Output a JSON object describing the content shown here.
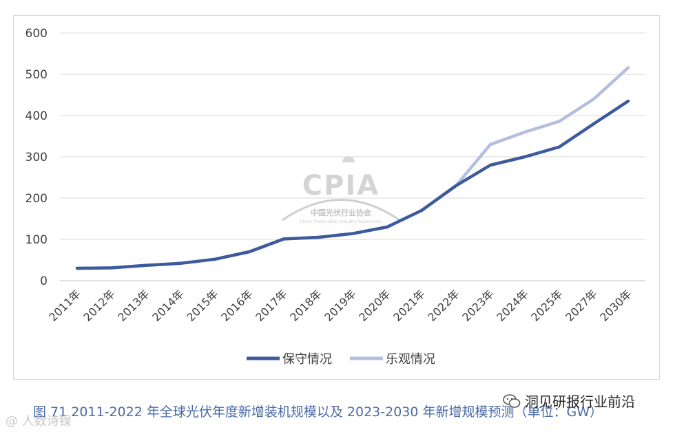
{
  "chart_data": {
    "type": "line",
    "title": "",
    "xlabel": "",
    "ylabel": "",
    "categories": [
      "2011年",
      "2012年",
      "2013年",
      "2014年",
      "2015年",
      "2016年",
      "2017年",
      "2018年",
      "2019年",
      "2020年",
      "2021年",
      "2022年",
      "2023年",
      "2024年",
      "2025年",
      "2027年",
      "2030年"
    ],
    "ylim": [
      0,
      600
    ],
    "yticks": [
      0,
      100,
      200,
      300,
      400,
      500,
      600
    ],
    "grid": true,
    "legend_position": "bottom",
    "series": [
      {
        "name": "保守情况",
        "color": "#3d5a9c",
        "values": [
          30,
          31,
          37,
          42,
          52,
          70,
          101,
          105,
          114,
          130,
          170,
          230,
          280,
          300,
          324,
          380,
          435
        ]
      },
      {
        "name": "乐观情况",
        "color": "#b3bfdf",
        "values": [
          30,
          31,
          37,
          42,
          52,
          70,
          101,
          105,
          114,
          130,
          170,
          230,
          330,
          360,
          386,
          440,
          516
        ]
      }
    ]
  },
  "watermark": {
    "logo_text": "CPIA",
    "org_name": "中国光伏行业协会",
    "org_name_en": "China Photovoltaic Industry Association"
  },
  "caption": "图 71   2011-2022 年全球光伏年度新增装机规模以及 2023-2030 年新增规模预测（单位：GW）",
  "account_name": "洞见研报行业前沿",
  "source_mark": "@ 人数诗镍",
  "icons": {
    "wechat": "wechat-icon"
  }
}
